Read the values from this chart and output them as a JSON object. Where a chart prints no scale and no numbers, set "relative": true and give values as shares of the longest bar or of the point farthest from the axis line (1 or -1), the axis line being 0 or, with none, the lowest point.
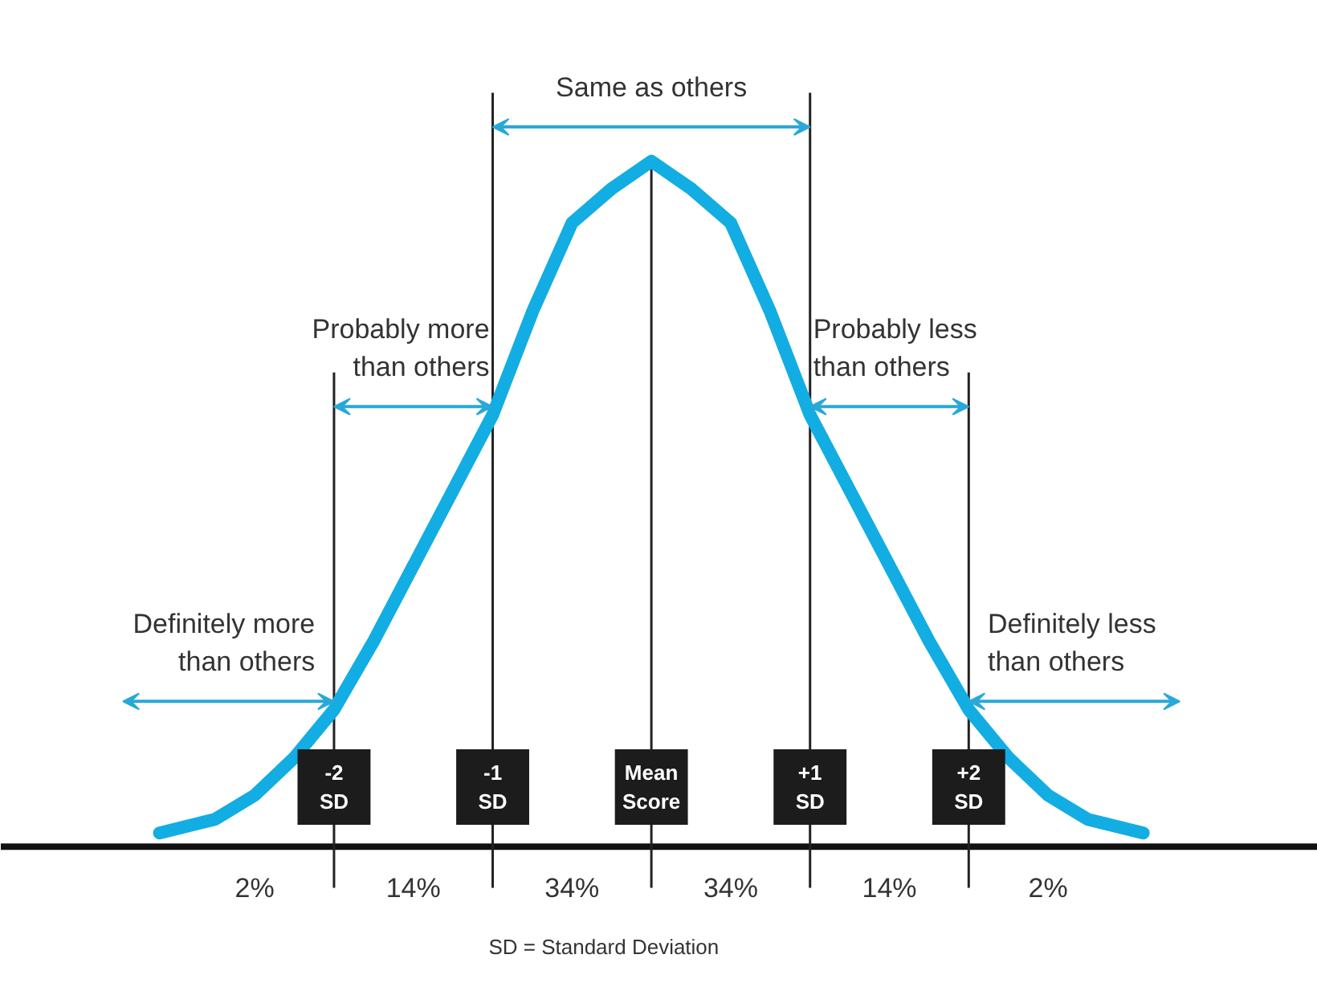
{
  "chart_data": {
    "type": "line",
    "relative": true,
    "xlim": [
      -4.1,
      4.2
    ],
    "xticks": [
      {
        "value": -2,
        "label": "-2 SD"
      },
      {
        "value": -1,
        "label": "-1 SD"
      },
      {
        "value": 0,
        "label": "Mean Score"
      },
      {
        "value": 1,
        "label": "+1 SD"
      },
      {
        "value": 2,
        "label": "+2 SD"
      }
    ],
    "x": [
      -3.1,
      -2.75,
      -2.5,
      -2.25,
      -2.0,
      -1.75,
      -1.5,
      -1.25,
      -1.0,
      -0.75,
      -0.5,
      -0.25,
      0.0,
      0.25,
      0.5,
      0.75,
      1.0,
      1.25,
      1.5,
      1.75,
      2.0,
      2.25,
      2.5,
      2.75,
      3.1
    ],
    "series": [
      {
        "color": "#12ade2",
        "values": [
          0.02,
          0.04,
          0.075,
          0.13,
          0.2,
          0.3,
          0.41,
          0.52,
          0.63,
          0.78,
          0.91,
          0.96,
          1.0,
          0.96,
          0.91,
          0.78,
          0.63,
          0.52,
          0.41,
          0.3,
          0.2,
          0.13,
          0.075,
          0.04,
          0.02
        ]
      }
    ],
    "ref_lines": [
      {
        "axis": "x",
        "value": -2,
        "color": "#222222"
      },
      {
        "axis": "x",
        "value": -1,
        "color": "#222222"
      },
      {
        "axis": "x",
        "value": 0,
        "color": "#222222"
      },
      {
        "axis": "x",
        "value": 1,
        "color": "#222222"
      },
      {
        "axis": "x",
        "value": 2,
        "color": "#222222"
      }
    ],
    "annotations": [
      "Same as others",
      "Probably more\nthan others",
      "Probably less\nthan others",
      "Definitely more\nthan others",
      "Definitely less\nthan others",
      "2%",
      "14%",
      "34%",
      "34%",
      "14%",
      "2%",
      "SD = Standard Deviation"
    ]
  }
}
